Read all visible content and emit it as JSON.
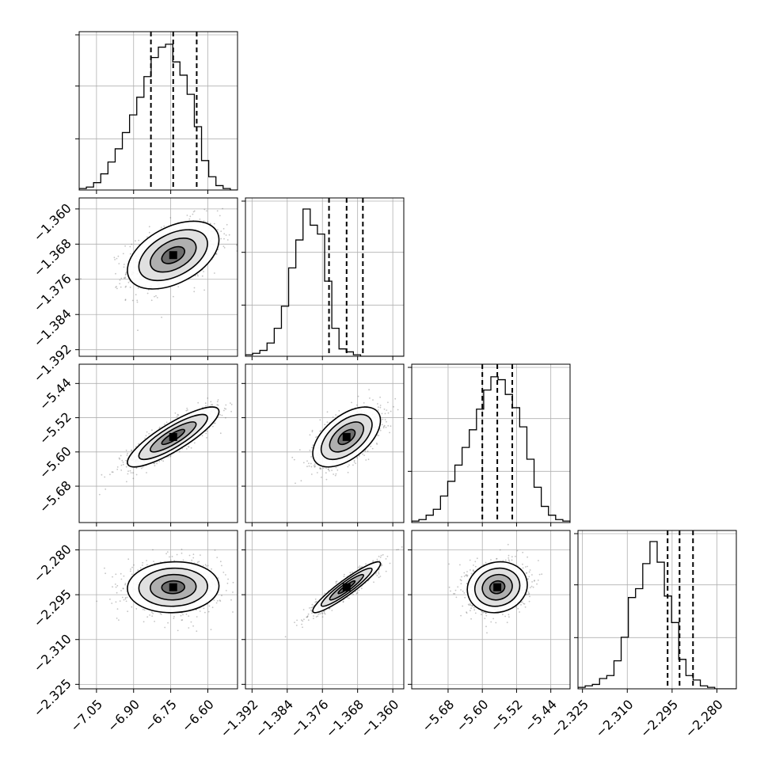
{
  "chart_data": {
    "type": "corner",
    "grid": true,
    "n_params": 4,
    "params": [
      {
        "index": 0,
        "range": [
          -7.12,
          -6.48
        ],
        "median": -6.74,
        "q16": -6.83,
        "q84": -6.645,
        "ticks": [
          -7.05,
          -6.9,
          -6.75,
          -6.6
        ],
        "tick_labels": [
          "−7.05",
          "−6.90",
          "−6.75",
          "−6.60"
        ]
      },
      {
        "index": 1,
        "range": [
          -1.3935,
          -1.3575
        ],
        "median": -1.3705,
        "q16": -1.3745,
        "q84": -1.3668,
        "ticks": [
          -1.392,
          -1.384,
          -1.376,
          -1.368,
          -1.36
        ],
        "tick_labels": [
          "−1.392",
          "−1.384",
          "−1.376",
          "−1.368",
          "−1.360"
        ]
      },
      {
        "index": 2,
        "range": [
          -5.765,
          -5.395
        ],
        "median": -5.565,
        "q16": -5.6,
        "q84": -5.53,
        "ticks": [
          -5.68,
          -5.6,
          -5.52,
          -5.44
        ],
        "tick_labels": [
          "−5.68",
          "−5.60",
          "−5.52",
          "−5.44"
        ]
      },
      {
        "index": 3,
        "range": [
          -2.3265,
          -2.2735
        ],
        "median": -2.2925,
        "q16": -2.2965,
        "q84": -2.288,
        "ticks": [
          -2.325,
          -2.31,
          -2.295,
          -2.28
        ],
        "tick_labels": [
          "−2.325",
          "−2.310",
          "−2.295",
          "−2.280"
        ]
      }
    ],
    "correlations": [
      [
        1,
        0.45,
        0.85,
        0.05
      ],
      [
        0.45,
        1,
        0.55,
        0.93
      ],
      [
        0.85,
        0.55,
        1,
        0.1
      ],
      [
        0.05,
        0.93,
        0.1,
        1
      ]
    ],
    "histograms": [
      [
        1,
        2,
        5,
        11,
        19,
        28,
        39,
        51,
        63,
        77,
        90,
        97,
        99,
        87,
        78,
        65,
        43,
        20,
        9,
        3,
        1,
        0
      ],
      [
        1,
        2,
        4,
        9,
        19,
        34,
        60,
        79,
        100,
        89,
        83,
        51,
        19,
        5,
        3,
        1,
        0,
        0,
        0,
        0,
        0,
        0
      ],
      [
        1,
        2,
        5,
        9,
        18,
        28,
        39,
        51,
        63,
        77,
        90,
        99,
        97,
        87,
        78,
        65,
        43,
        24,
        11,
        5,
        2,
        1
      ],
      [
        1,
        2,
        3,
        7,
        9,
        19,
        35,
        62,
        68,
        85,
        100,
        86,
        63,
        45,
        20,
        9,
        6,
        2,
        1,
        0,
        0,
        0
      ]
    ],
    "hist_ticks": [
      0.33,
      0.67,
      1.0
    ],
    "contour_levels": [
      "0.5 sigma",
      "1 sigma",
      "1.5 sigma",
      "2 sigma"
    ],
    "colors": {
      "line": "#000000",
      "grid": "#b0b0b0",
      "scatter": "#555555"
    }
  }
}
